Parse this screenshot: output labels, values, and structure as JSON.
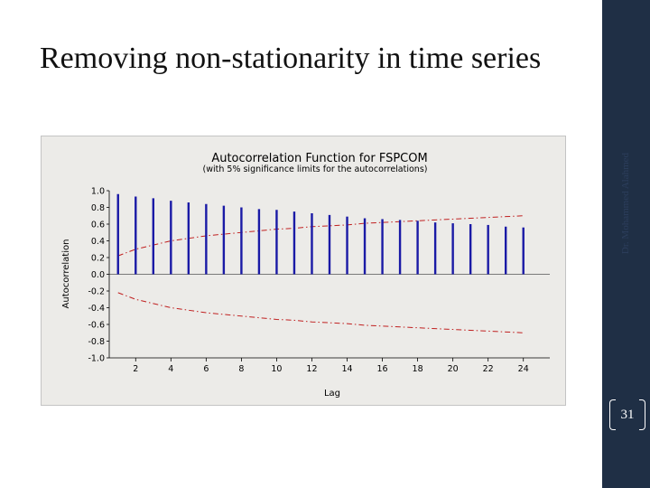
{
  "slide": {
    "title": "Removing non-stationarity in time series",
    "side_text": "Dr. Mohammed Alahmed",
    "page_number": "31"
  },
  "colors": {
    "sidebar": "#1f2f45",
    "bars": "#1a1aa6",
    "limits": "#c02020",
    "chart_bg": "#ecebe8"
  },
  "chart_data": {
    "type": "bar",
    "title": "Autocorrelation Function for FSPCOM",
    "subtitle": "(with 5% significance limits for the autocorrelations)",
    "xlabel": "Lag",
    "ylabel": "Autocorrelation",
    "x_ticks": [
      2,
      4,
      6,
      8,
      10,
      12,
      14,
      16,
      18,
      20,
      22,
      24
    ],
    "y_ticks": [
      1.0,
      0.8,
      0.6,
      0.4,
      0.2,
      0.0,
      -0.2,
      -0.4,
      -0.6,
      -0.8,
      -1.0
    ],
    "y_tick_labels": [
      "1.0",
      "0.8",
      "0.6",
      "0.4",
      "0.2",
      "0.0",
      "-0.2",
      "-0.4",
      "-0.6",
      "-0.8",
      "-1.0"
    ],
    "xlim": [
      0.5,
      25.5
    ],
    "ylim": [
      -1.0,
      1.0
    ],
    "lags": [
      1,
      2,
      3,
      4,
      5,
      6,
      7,
      8,
      9,
      10,
      11,
      12,
      13,
      14,
      15,
      16,
      17,
      18,
      19,
      20,
      21,
      22,
      23,
      24
    ],
    "values": [
      0.96,
      0.93,
      0.91,
      0.88,
      0.86,
      0.84,
      0.82,
      0.8,
      0.78,
      0.77,
      0.75,
      0.73,
      0.71,
      0.69,
      0.67,
      0.66,
      0.65,
      0.64,
      0.62,
      0.61,
      0.6,
      0.59,
      0.57,
      0.56
    ],
    "upper_limit": [
      0.22,
      0.3,
      0.35,
      0.4,
      0.43,
      0.46,
      0.48,
      0.5,
      0.52,
      0.54,
      0.55,
      0.57,
      0.58,
      0.59,
      0.61,
      0.62,
      0.63,
      0.64,
      0.65,
      0.66,
      0.67,
      0.68,
      0.69,
      0.7
    ],
    "lower_limit": [
      -0.22,
      -0.3,
      -0.35,
      -0.4,
      -0.43,
      -0.46,
      -0.48,
      -0.5,
      -0.52,
      -0.54,
      -0.55,
      -0.57,
      -0.58,
      -0.59,
      -0.61,
      -0.62,
      -0.63,
      -0.64,
      -0.65,
      -0.66,
      -0.67,
      -0.68,
      -0.69,
      -0.7
    ]
  }
}
